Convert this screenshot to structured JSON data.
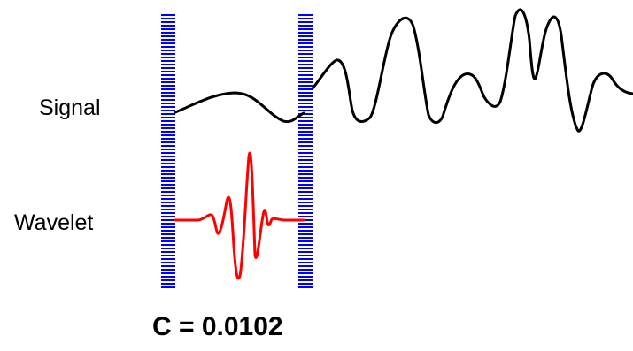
{
  "labels": {
    "signal": "Signal",
    "wavelet": "Wavelet"
  },
  "coefficient": {
    "text": "C = 0.0102",
    "value": 0.0102
  },
  "colors": {
    "signal": "#000000",
    "wavelet": "#ff0000",
    "window_marker": "#0000ff",
    "background": "#ffffff"
  }
}
